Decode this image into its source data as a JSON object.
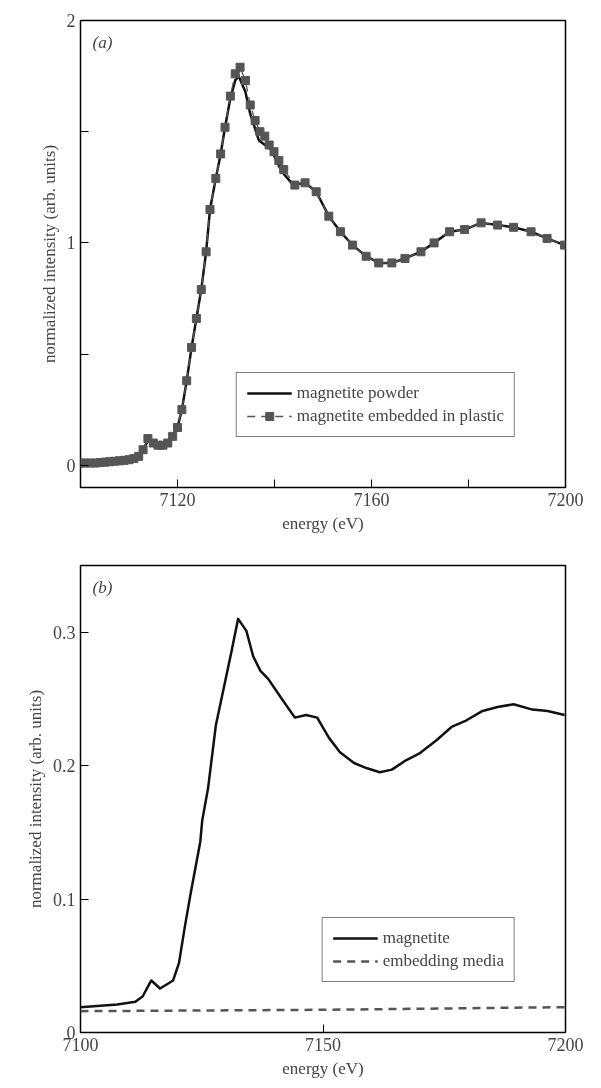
{
  "chart_data": [
    {
      "type": "line",
      "title": "(a)",
      "xlabel": "energy (eV)",
      "ylabel": "normalized intensity (arb. units)",
      "xlim": [
        7100,
        7200
      ],
      "ylim": [
        -0.1,
        2
      ],
      "xticks": [
        7120,
        {
          "value": 7140,
          "label": null
        },
        7160,
        {
          "value": 7180,
          "label": null
        },
        7200
      ],
      "yticks": [
        0,
        {
          "value": 0.5,
          "label": null
        },
        1,
        {
          "value": 1.5,
          "label": null
        },
        2
      ],
      "grid": false,
      "legend": "bottom right",
      "series": [
        {
          "name": "magnetite powder",
          "color": "#111111",
          "line_style": "solid",
          "marker": "none",
          "x": [
            7100,
            7105,
            7107.3,
            7110.5,
            7112,
            7112.9,
            7113.9,
            7115,
            7116,
            7117,
            7118,
            7119,
            7120,
            7120.9,
            7121.9,
            7122.9,
            7123.9,
            7124.9,
            7125.9,
            7126.7,
            7127.9,
            7128.9,
            7129.8,
            7130.9,
            7131.9,
            7132.6,
            7134,
            7135,
            7136.8,
            7139.3,
            7141.5,
            7143.9,
            7146.3,
            7148.6,
            7151.2,
            7153.6,
            7156.1,
            7158.9,
            7161.5,
            7164.2,
            7166.9,
            7170.2,
            7172.9,
            7176.1,
            7179.2,
            7182.6,
            7186,
            7189.3,
            7192.9,
            7196.2,
            7199.8
          ],
          "values": [
            0.01,
            0.015,
            0.02,
            0.025,
            0.04,
            0.07,
            0.11,
            0.1,
            0.09,
            0.09,
            0.1,
            0.13,
            0.17,
            0.25,
            0.38,
            0.53,
            0.66,
            0.79,
            0.96,
            1.15,
            1.29,
            1.4,
            1.52,
            1.65,
            1.73,
            1.75,
            1.68,
            1.58,
            1.46,
            1.42,
            1.32,
            1.26,
            1.27,
            1.23,
            1.12,
            1.05,
            0.99,
            0.94,
            0.91,
            0.91,
            0.93,
            0.96,
            1.0,
            1.05,
            1.06,
            1.09,
            1.08,
            1.07,
            1.05,
            1.02,
            0.99
          ]
        },
        {
          "name": "magnetite embedded in plastic",
          "color": "#555555",
          "line_style": "dashed",
          "marker": "square",
          "x": [
            7100,
            7101,
            7102,
            7103,
            7104,
            7105,
            7106,
            7107,
            7108,
            7109,
            7110,
            7111,
            7112,
            7112.9,
            7113.9,
            7115,
            7116,
            7117,
            7118,
            7119,
            7120,
            7120.9,
            7121.9,
            7122.9,
            7123.9,
            7124.9,
            7125.9,
            7126.7,
            7127.9,
            7128.9,
            7129.8,
            7130.9,
            7131.9,
            7132.9,
            7134,
            7135,
            7136,
            7137,
            7138,
            7138.9,
            7139.9,
            7140.9,
            7141.9,
            7144.2,
            7146.3,
            7148.6,
            7151.2,
            7153.6,
            7156.1,
            7158.9,
            7161.5,
            7164.2,
            7166.9,
            7170.2,
            7172.9,
            7176.1,
            7179.2,
            7182.6,
            7186,
            7189.3,
            7192.9,
            7196.2,
            7199.8
          ],
          "values": [
            0.01,
            0.01,
            0.01,
            0.01,
            0.012,
            0.014,
            0.016,
            0.018,
            0.02,
            0.022,
            0.025,
            0.03,
            0.04,
            0.07,
            0.12,
            0.1,
            0.09,
            0.09,
            0.1,
            0.13,
            0.17,
            0.25,
            0.38,
            0.53,
            0.66,
            0.79,
            0.96,
            1.15,
            1.29,
            1.4,
            1.52,
            1.66,
            1.76,
            1.79,
            1.73,
            1.62,
            1.55,
            1.5,
            1.48,
            1.44,
            1.41,
            1.37,
            1.33,
            1.26,
            1.27,
            1.23,
            1.12,
            1.05,
            0.99,
            0.94,
            0.91,
            0.91,
            0.93,
            0.96,
            1.0,
            1.05,
            1.06,
            1.09,
            1.08,
            1.07,
            1.05,
            1.02,
            0.99
          ]
        }
      ]
    },
    {
      "type": "line",
      "title": "(b)",
      "xlabel": "energy (eV)",
      "ylabel": "normalized intensity (arb. units)",
      "xlim": [
        7100,
        7200
      ],
      "ylim": [
        0,
        0.35
      ],
      "xticks": [
        7100,
        7150,
        7200
      ],
      "yticks": [
        0,
        0.1,
        0.2,
        0.3
      ],
      "grid": false,
      "legend": "bottom right",
      "series": [
        {
          "name": "magnetite",
          "color": "#111111",
          "line_style": "solid",
          "marker": "none",
          "x": [
            7100,
            7107.6,
            7111.3,
            7112.8,
            7114.6,
            7116.4,
            7119.1,
            7120.3,
            7121.5,
            7122.7,
            7124.7,
            7125.1,
            7126.3,
            7127.9,
            7131.1,
            7132.5,
            7134.2,
            7135.6,
            7137.1,
            7138.7,
            7141.7,
            7144.2,
            7146.5,
            7148.8,
            7151.2,
            7153.5,
            7156.4,
            7159.1,
            7161.7,
            7164.2,
            7167.1,
            7169.8,
            7173.4,
            7176.5,
            7179.6,
            7182.9,
            7186,
            7189.3,
            7193.2,
            7196.3,
            7199.8
          ],
          "values": [
            0.019,
            0.021,
            0.023,
            0.027,
            0.039,
            0.033,
            0.039,
            0.052,
            0.079,
            0.104,
            0.143,
            0.159,
            0.183,
            0.23,
            0.285,
            0.31,
            0.301,
            0.282,
            0.271,
            0.265,
            0.249,
            0.236,
            0.238,
            0.236,
            0.221,
            0.21,
            0.202,
            0.198,
            0.195,
            0.197,
            0.204,
            0.209,
            0.219,
            0.229,
            0.234,
            0.241,
            0.244,
            0.246,
            0.242,
            0.241,
            0.238
          ]
        },
        {
          "name": "embedding media",
          "color": "#555555",
          "line_style": "dashed",
          "marker": "none",
          "x": [
            7100,
            7150,
            7200
          ],
          "values": [
            0.016,
            0.017,
            0.019
          ]
        }
      ]
    }
  ]
}
